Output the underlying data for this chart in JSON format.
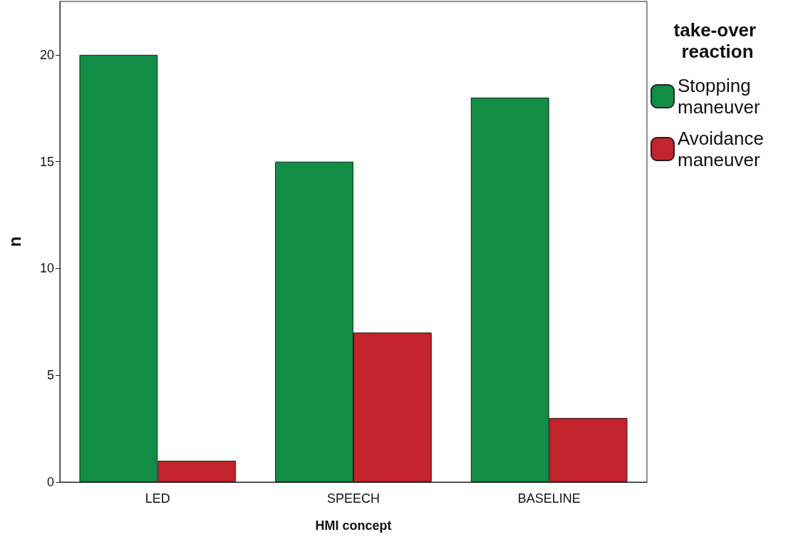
{
  "chart_data": {
    "type": "bar",
    "xlabel": "HMI concept",
    "ylabel": "n",
    "legend_title": "take-over reaction",
    "categories": [
      "LED",
      "SPEECH",
      "BASELINE"
    ],
    "series": [
      {
        "name": "Stopping maneuver",
        "color": "#128d45",
        "values": [
          20,
          15,
          18
        ]
      },
      {
        "name": "Avoidance maneuver",
        "color": "#c3242c",
        "values": [
          1,
          7,
          3
        ]
      }
    ],
    "ylim": [
      0,
      22.5
    ],
    "yticks": [
      0,
      5,
      10,
      15,
      20
    ],
    "grid": false,
    "legend": "right"
  }
}
